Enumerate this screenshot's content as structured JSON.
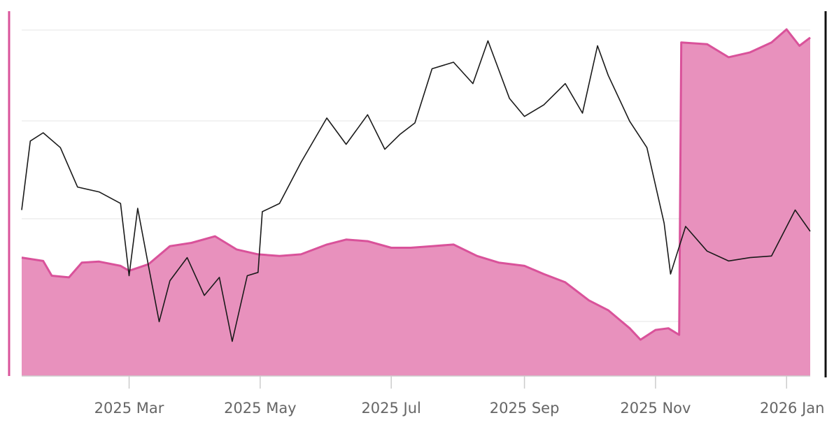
{
  "chart_data": {
    "type": "line",
    "title": "",
    "xlabel": "",
    "ylabel_left": "",
    "ylabel_right": "",
    "x_range": [
      "2025-01-10",
      "2026-01-12"
    ],
    "x_tick_labels": [
      {
        "date": "2025-03-01",
        "label": "2025 Mar"
      },
      {
        "date": "2025-05-01",
        "label": "2025 May"
      },
      {
        "date": "2025-07-01",
        "label": "2025 Jul"
      },
      {
        "date": "2025-09-01",
        "label": "2025 Sep"
      },
      {
        "date": "2025-11-01",
        "label": "2025 Nov"
      },
      {
        "date": "2026-01-01",
        "label": "2026 Jan"
      }
    ],
    "grid": true,
    "legend": "none",
    "left_axis_ylim": [
      0,
      100
    ],
    "right_axis_ylim": [
      0,
      100
    ],
    "series": [
      {
        "type": "area",
        "axis": "left",
        "color": "#d9529a",
        "fill": "#e891bd",
        "points": [
          [
            "2025-01-10",
            30.5
          ],
          [
            "2025-01-20",
            29.5
          ],
          [
            "2025-01-24",
            25.0
          ],
          [
            "2025-02-01",
            24.5
          ],
          [
            "2025-02-07",
            29.0
          ],
          [
            "2025-02-15",
            29.3
          ],
          [
            "2025-02-25",
            28.0
          ],
          [
            "2025-03-01",
            26.5
          ],
          [
            "2025-03-10",
            28.5
          ],
          [
            "2025-03-20",
            34.0
          ],
          [
            "2025-03-30",
            35.0
          ],
          [
            "2025-04-10",
            37.0
          ],
          [
            "2025-04-20",
            33.0
          ],
          [
            "2025-04-30",
            31.5
          ],
          [
            "2025-05-10",
            31.0
          ],
          [
            "2025-05-20",
            31.5
          ],
          [
            "2025-06-01",
            34.5
          ],
          [
            "2025-06-10",
            36.0
          ],
          [
            "2025-06-20",
            35.5
          ],
          [
            "2025-07-01",
            33.5
          ],
          [
            "2025-07-10",
            33.5
          ],
          [
            "2025-07-20",
            34.0
          ],
          [
            "2025-07-30",
            34.5
          ],
          [
            "2025-08-10",
            31.0
          ],
          [
            "2025-08-20",
            29.0
          ],
          [
            "2025-09-01",
            28.0
          ],
          [
            "2025-09-10",
            25.5
          ],
          [
            "2025-09-20",
            23.0
          ],
          [
            "2025-10-01",
            17.5
          ],
          [
            "2025-10-10",
            14.5
          ],
          [
            "2025-10-20",
            9.0
          ],
          [
            "2025-10-25",
            5.5
          ],
          [
            "2025-11-01",
            8.5
          ],
          [
            "2025-11-07",
            9.0
          ],
          [
            "2025-11-12",
            7.0
          ],
          [
            "2025-11-13",
            96.0
          ],
          [
            "2025-11-25",
            95.5
          ],
          [
            "2025-12-05",
            91.5
          ],
          [
            "2025-12-15",
            93.0
          ],
          [
            "2025-12-25",
            96.0
          ],
          [
            "2026-01-01",
            100.0
          ],
          [
            "2026-01-07",
            95.0
          ],
          [
            "2026-01-12",
            97.5
          ]
        ]
      },
      {
        "type": "line",
        "axis": "right",
        "color": "#1a1a1a",
        "points": [
          [
            "2025-01-10",
            45.0
          ],
          [
            "2025-01-14",
            66.0
          ],
          [
            "2025-01-20",
            68.5
          ],
          [
            "2025-01-28",
            64.0
          ],
          [
            "2025-02-05",
            52.0
          ],
          [
            "2025-02-15",
            50.5
          ],
          [
            "2025-02-25",
            47.0
          ],
          [
            "2025-03-01",
            25.0
          ],
          [
            "2025-03-05",
            45.5
          ],
          [
            "2025-03-10",
            28.0
          ],
          [
            "2025-03-15",
            11.0
          ],
          [
            "2025-03-20",
            23.5
          ],
          [
            "2025-03-28",
            30.5
          ],
          [
            "2025-04-05",
            19.0
          ],
          [
            "2025-04-12",
            24.5
          ],
          [
            "2025-04-18",
            5.0
          ],
          [
            "2025-04-25",
            25.0
          ],
          [
            "2025-04-30",
            26.0
          ],
          [
            "2025-05-02",
            44.5
          ],
          [
            "2025-05-10",
            47.0
          ],
          [
            "2025-05-20",
            59.5
          ],
          [
            "2025-06-01",
            73.0
          ],
          [
            "2025-06-10",
            65.0
          ],
          [
            "2025-06-20",
            74.0
          ],
          [
            "2025-06-28",
            63.5
          ],
          [
            "2025-07-05",
            68.0
          ],
          [
            "2025-07-12",
            71.5
          ],
          [
            "2025-07-20",
            88.0
          ],
          [
            "2025-07-30",
            90.0
          ],
          [
            "2025-08-08",
            83.5
          ],
          [
            "2025-08-15",
            96.5
          ],
          [
            "2025-08-25",
            79.0
          ],
          [
            "2025-09-01",
            73.5
          ],
          [
            "2025-09-10",
            77.0
          ],
          [
            "2025-09-20",
            83.5
          ],
          [
            "2025-09-28",
            74.5
          ],
          [
            "2025-10-05",
            95.0
          ],
          [
            "2025-10-10",
            86.0
          ],
          [
            "2025-10-20",
            72.0
          ],
          [
            "2025-10-28",
            64.0
          ],
          [
            "2025-11-05",
            41.0
          ],
          [
            "2025-11-08",
            25.5
          ],
          [
            "2025-11-15",
            40.0
          ],
          [
            "2025-11-25",
            32.5
          ],
          [
            "2025-12-05",
            29.5
          ],
          [
            "2025-12-15",
            30.5
          ],
          [
            "2025-12-25",
            31.0
          ],
          [
            "2026-01-05",
            45.0
          ],
          [
            "2026-01-12",
            38.5
          ]
        ]
      }
    ]
  }
}
